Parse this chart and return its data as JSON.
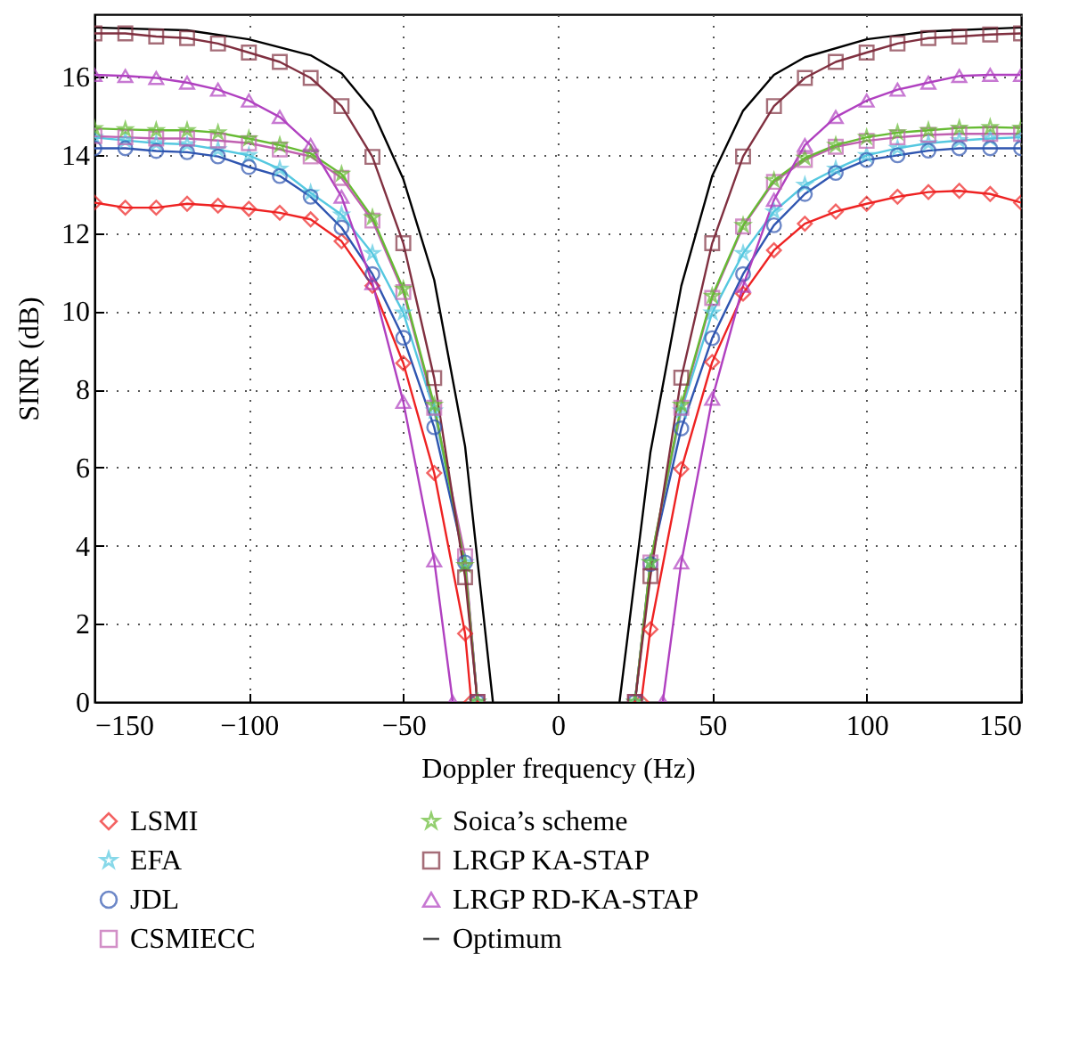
{
  "chart_data": {
    "type": "line",
    "xlabel": "Doppler frequency (Hz)",
    "ylabel": "SINR (dB)",
    "xlim": [
      -150,
      150
    ],
    "ylim": [
      0,
      17.6
    ],
    "xticks": [
      -150,
      -100,
      -50,
      0,
      50,
      100,
      150
    ],
    "yticks": [
      0,
      2,
      4,
      6,
      8,
      10,
      12,
      14,
      16
    ],
    "grid": true,
    "legend": "bottom",
    "line_style": "solid",
    "series": [
      {
        "name": "LSMI",
        "color": "#ee2222",
        "marker": "diamond",
        "x": [
          -150,
          -140,
          -130,
          -120,
          -110,
          -100,
          -90,
          -80,
          -70,
          -60,
          -50,
          -40,
          -30,
          -28,
          0,
          27,
          30,
          40,
          50,
          60,
          70,
          80,
          90,
          100,
          110,
          120,
          130,
          140,
          150
        ],
        "values": [
          12.78,
          12.65,
          12.65,
          12.75,
          12.7,
          12.62,
          12.52,
          12.35,
          11.79,
          10.65,
          8.67,
          5.86,
          1.75,
          0,
          null,
          0,
          1.86,
          5.96,
          8.7,
          10.45,
          11.56,
          12.24,
          12.55,
          12.75,
          12.93,
          13.05,
          13.08,
          13.0,
          12.78
        ]
      },
      {
        "name": "EFA",
        "color": "#55c8e0",
        "marker": "star",
        "x": [
          -150,
          -140,
          -130,
          -120,
          -110,
          -100,
          -90,
          -80,
          -70,
          -60,
          -50,
          -40,
          -30,
          -26,
          0,
          25,
          30,
          40,
          50,
          60,
          70,
          80,
          90,
          100,
          110,
          120,
          130,
          140,
          150
        ],
        "values": [
          14.45,
          14.37,
          14.3,
          14.27,
          14.14,
          13.99,
          13.64,
          13.03,
          12.47,
          11.48,
          9.96,
          7.45,
          3.57,
          0,
          null,
          0,
          3.57,
          7.45,
          9.96,
          11.48,
          12.55,
          13.23,
          13.64,
          13.99,
          14.17,
          14.3,
          14.37,
          14.42,
          14.45
        ]
      },
      {
        "name": "JDL",
        "color": "#2f55b0",
        "marker": "circle",
        "x": [
          -150,
          -140,
          -130,
          -120,
          -110,
          -100,
          -90,
          -80,
          -70,
          -60,
          -50,
          -40,
          -30,
          -26,
          0,
          25,
          30,
          40,
          50,
          60,
          70,
          80,
          90,
          100,
          110,
          120,
          130,
          140,
          150
        ],
        "values": [
          14.17,
          14.17,
          14.1,
          14.07,
          13.96,
          13.69,
          13.46,
          12.93,
          12.14,
          10.95,
          9.32,
          7.03,
          3.57,
          0,
          null,
          0,
          3.53,
          7.0,
          9.31,
          10.95,
          12.2,
          13.0,
          13.54,
          13.87,
          13.99,
          14.11,
          14.17,
          14.17,
          14.17
        ]
      },
      {
        "name": "CSMIECC",
        "color": "#c060b0",
        "marker": "square",
        "x": [
          -150,
          -140,
          -130,
          -120,
          -110,
          -100,
          -90,
          -80,
          -70,
          -60,
          -50,
          -40,
          -30,
          -26,
          0,
          25,
          30,
          40,
          50,
          60,
          70,
          80,
          90,
          100,
          110,
          120,
          130,
          140,
          150
        ],
        "values": [
          14.48,
          14.45,
          14.42,
          14.42,
          14.37,
          14.3,
          14.14,
          13.96,
          13.41,
          12.32,
          10.49,
          7.53,
          3.73,
          0,
          null,
          0,
          3.57,
          7.53,
          10.34,
          12.17,
          13.31,
          13.87,
          14.21,
          14.36,
          14.45,
          14.51,
          14.54,
          14.54,
          14.54
        ]
      },
      {
        "name": "Soica’s scheme",
        "color": "#66bb33",
        "marker": "star",
        "x": [
          -150,
          -140,
          -130,
          -120,
          -110,
          -100,
          -90,
          -80,
          -70,
          -60,
          -50,
          -40,
          -30,
          -26,
          0,
          25,
          30,
          40,
          50,
          60,
          70,
          80,
          90,
          100,
          110,
          120,
          130,
          140,
          150
        ],
        "values": [
          14.68,
          14.65,
          14.63,
          14.63,
          14.57,
          14.42,
          14.25,
          14.04,
          13.51,
          12.4,
          10.57,
          7.6,
          3.5,
          0,
          null,
          0,
          3.57,
          7.6,
          10.39,
          12.2,
          13.35,
          13.92,
          14.25,
          14.45,
          14.57,
          14.63,
          14.69,
          14.71,
          14.69
        ]
      },
      {
        "name": "LRGP KA-STAP",
        "color": "#803040",
        "marker": "square",
        "x": [
          -150,
          -140,
          -130,
          -120,
          -110,
          -100,
          -90,
          -80,
          -70,
          -60,
          -50,
          -40,
          -30,
          -26,
          0,
          25,
          30,
          40,
          50,
          60,
          70,
          80,
          90,
          100,
          110,
          120,
          130,
          140,
          150
        ],
        "values": [
          17.11,
          17.11,
          17.03,
          16.99,
          16.85,
          16.62,
          16.38,
          15.97,
          15.25,
          13.95,
          11.74,
          8.29,
          3.19,
          0,
          null,
          0,
          3.22,
          8.3,
          11.74,
          13.96,
          15.25,
          15.97,
          16.38,
          16.62,
          16.85,
          16.99,
          17.03,
          17.08,
          17.11
        ]
      },
      {
        "name": "LRGP RD-KA-STAP",
        "color": "#b040c0",
        "marker": "triangle",
        "x": [
          -150,
          -140,
          -130,
          -120,
          -110,
          -100,
          -90,
          -80,
          -70,
          -60,
          -50,
          -40,
          -34,
          0,
          34,
          40,
          50,
          60,
          70,
          80,
          90,
          100,
          110,
          120,
          130,
          140,
          150
        ],
        "values": [
          16.05,
          16.02,
          15.97,
          15.85,
          15.67,
          15.39,
          14.97,
          14.25,
          12.93,
          10.72,
          7.68,
          3.62,
          0,
          null,
          0,
          3.57,
          7.76,
          10.65,
          12.85,
          14.25,
          14.97,
          15.39,
          15.67,
          15.85,
          16.02,
          16.05,
          16.05
        ]
      },
      {
        "name": "Optimum",
        "color": "#000000",
        "marker": "none",
        "x": [
          -150,
          -120,
          -100,
          -80,
          -70,
          -60,
          -50,
          -40,
          -30,
          -21,
          0,
          20,
          30,
          40,
          50,
          60,
          70,
          80,
          100,
          120,
          150
        ],
        "values": [
          17.26,
          17.19,
          16.96,
          16.55,
          16.09,
          15.13,
          13.38,
          10.8,
          6.54,
          0,
          null,
          0,
          6.39,
          10.65,
          13.46,
          15.13,
          16.05,
          16.5,
          16.96,
          17.16,
          17.26
        ]
      }
    ]
  }
}
